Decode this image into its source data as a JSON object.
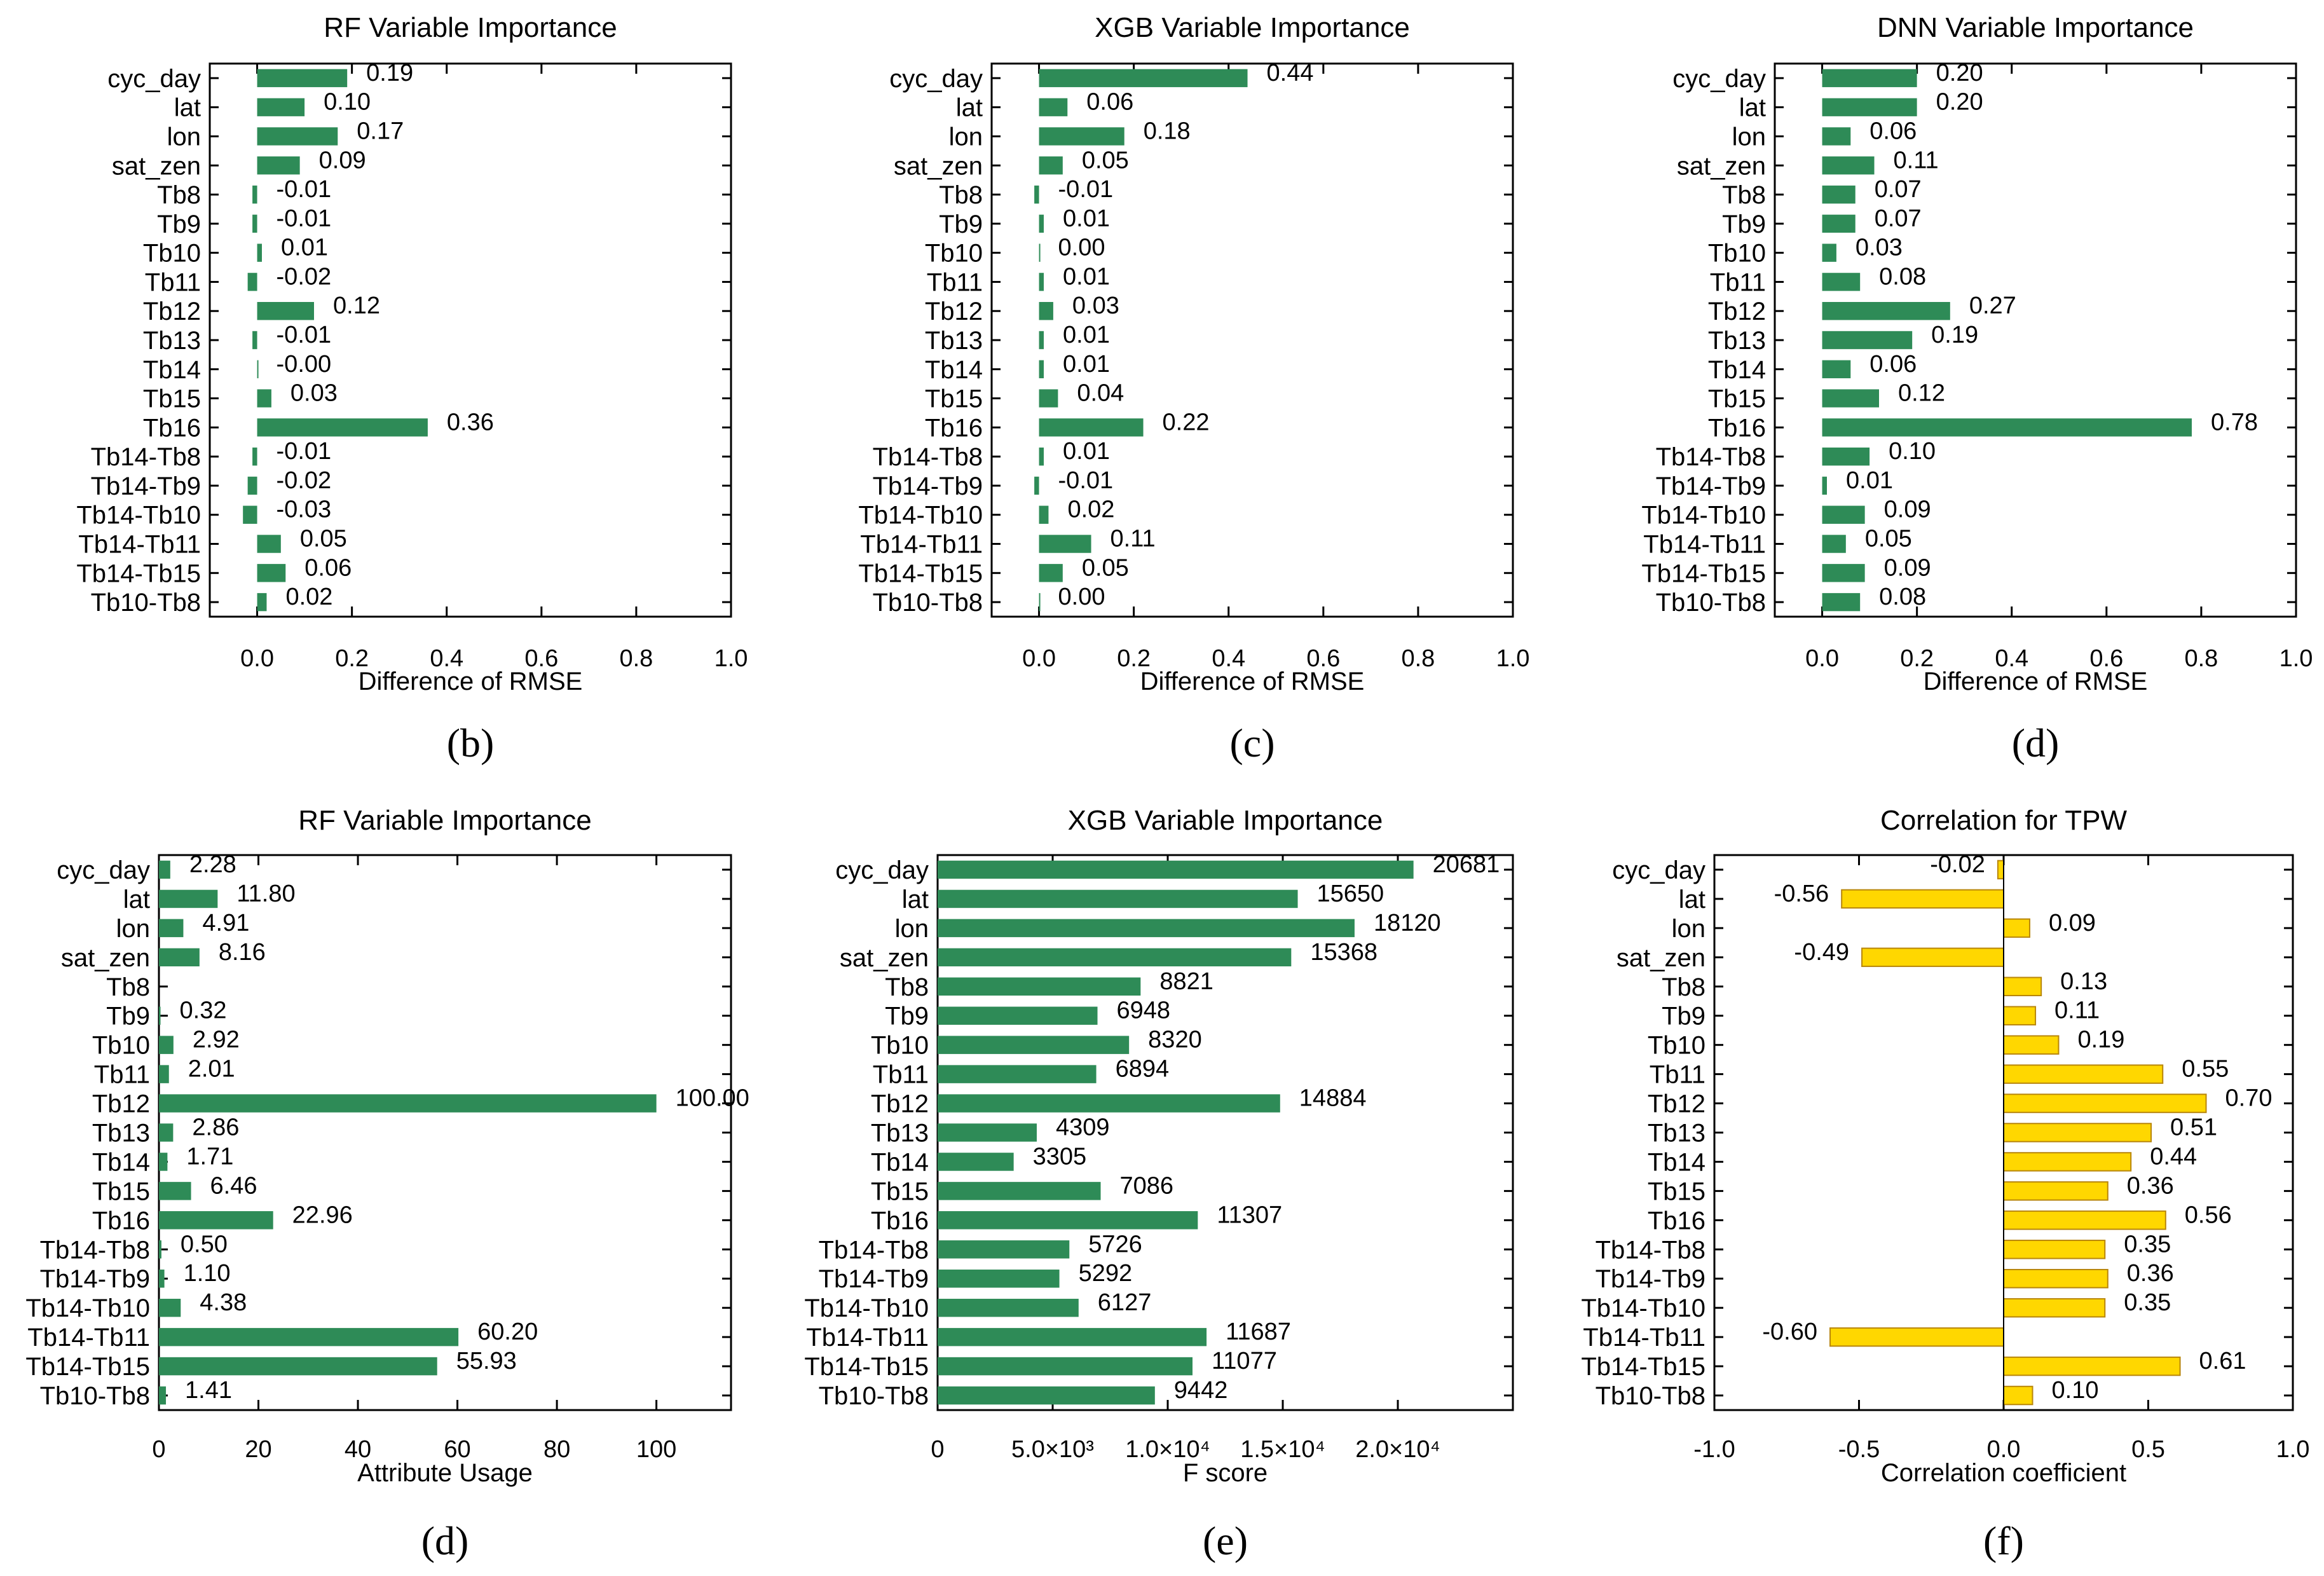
{
  "chart_data": [
    {
      "type": "bar",
      "orientation": "horizontal",
      "title": "RF Variable Importance",
      "xlabel": "Difference of RMSE",
      "panel_label": "(b)",
      "categories": [
        "cyc_day",
        "lat",
        "lon",
        "sat_zen",
        "Tb8",
        "Tb9",
        "Tb10",
        "Tb11",
        "Tb12",
        "Tb13",
        "Tb14",
        "Tb15",
        "Tb16",
        "Tb14-Tb8",
        "Tb14-Tb9",
        "Tb14-Tb10",
        "Tb14-Tb11",
        "Tb14-Tb15",
        "Tb10-Tb8"
      ],
      "values": [
        0.19,
        0.1,
        0.17,
        0.09,
        -0.01,
        -0.01,
        0.01,
        -0.02,
        0.12,
        -0.01,
        -0.0,
        0.03,
        0.36,
        -0.01,
        -0.02,
        -0.03,
        0.05,
        0.06,
        0.02
      ],
      "labels": [
        "0.19",
        "0.10",
        "0.17",
        "0.09",
        "-0.01",
        "-0.01",
        "0.01",
        "-0.02",
        "0.12",
        "-0.01",
        "-0.00",
        "0.03",
        "0.36",
        "-0.01",
        "-0.02",
        "-0.03",
        "0.05",
        "0.06",
        "0.02"
      ],
      "xlim": [
        -0.1,
        1.0
      ],
      "xticks": [
        0.0,
        0.2,
        0.4,
        0.6,
        0.8,
        1.0
      ],
      "xtick_labels": [
        "0.0",
        "0.2",
        "0.4",
        "0.6",
        "0.8",
        "1.0"
      ],
      "bar_color": "#2e8b57"
    },
    {
      "type": "bar",
      "orientation": "horizontal",
      "title": "XGB Variable Importance",
      "xlabel": "Difference of RMSE",
      "panel_label": "(c)",
      "categories": [
        "cyc_day",
        "lat",
        "lon",
        "sat_zen",
        "Tb8",
        "Tb9",
        "Tb10",
        "Tb11",
        "Tb12",
        "Tb13",
        "Tb14",
        "Tb15",
        "Tb16",
        "Tb14-Tb8",
        "Tb14-Tb9",
        "Tb14-Tb10",
        "Tb14-Tb11",
        "Tb14-Tb15",
        "Tb10-Tb8"
      ],
      "values": [
        0.44,
        0.06,
        0.18,
        0.05,
        -0.01,
        0.01,
        0.0,
        0.01,
        0.03,
        0.01,
        0.01,
        0.04,
        0.22,
        0.01,
        -0.01,
        0.02,
        0.11,
        0.05,
        0.0
      ],
      "labels": [
        "0.44",
        "0.06",
        "0.18",
        "0.05",
        "-0.01",
        "0.01",
        "0.00",
        "0.01",
        "0.03",
        "0.01",
        "0.01",
        "0.04",
        "0.22",
        "0.01",
        "-0.01",
        "0.02",
        "0.11",
        "0.05",
        "0.00"
      ],
      "xlim": [
        -0.1,
        1.0
      ],
      "xticks": [
        0.0,
        0.2,
        0.4,
        0.6,
        0.8,
        1.0
      ],
      "xtick_labels": [
        "0.0",
        "0.2",
        "0.4",
        "0.6",
        "0.8",
        "1.0"
      ],
      "bar_color": "#2e8b57"
    },
    {
      "type": "bar",
      "orientation": "horizontal",
      "title": "DNN Variable Importance",
      "xlabel": "Difference of RMSE",
      "panel_label": "(d)",
      "categories": [
        "cyc_day",
        "lat",
        "lon",
        "sat_zen",
        "Tb8",
        "Tb9",
        "Tb10",
        "Tb11",
        "Tb12",
        "Tb13",
        "Tb14",
        "Tb15",
        "Tb16",
        "Tb14-Tb8",
        "Tb14-Tb9",
        "Tb14-Tb10",
        "Tb14-Tb11",
        "Tb14-Tb15",
        "Tb10-Tb8"
      ],
      "values": [
        0.2,
        0.2,
        0.06,
        0.11,
        0.07,
        0.07,
        0.03,
        0.08,
        0.27,
        0.19,
        0.06,
        0.12,
        0.78,
        0.1,
        0.01,
        0.09,
        0.05,
        0.09,
        0.08
      ],
      "labels": [
        "0.20",
        "0.20",
        "0.06",
        "0.11",
        "0.07",
        "0.07",
        "0.03",
        "0.08",
        "0.27",
        "0.19",
        "0.06",
        "0.12",
        "0.78",
        "0.10",
        "0.01",
        "0.09",
        "0.05",
        "0.09",
        "0.08"
      ],
      "xlim": [
        -0.1,
        1.0
      ],
      "xticks": [
        0.0,
        0.2,
        0.4,
        0.6,
        0.8,
        1.0
      ],
      "xtick_labels": [
        "0.0",
        "0.2",
        "0.4",
        "0.6",
        "0.8",
        "1.0"
      ],
      "bar_color": "#2e8b57"
    },
    {
      "type": "bar",
      "orientation": "horizontal",
      "title": "RF Variable Importance",
      "xlabel": "Attribute Usage",
      "panel_label": "(d)",
      "categories": [
        "cyc_day",
        "lat",
        "lon",
        "sat_zen",
        "Tb8",
        "Tb9",
        "Tb10",
        "Tb11",
        "Tb12",
        "Tb13",
        "Tb14",
        "Tb15",
        "Tb16",
        "Tb14-Tb8",
        "Tb14-Tb9",
        "Tb14-Tb10",
        "Tb14-Tb11",
        "Tb14-Tb15",
        "Tb10-Tb8"
      ],
      "values": [
        2.28,
        11.8,
        4.91,
        8.16,
        0,
        0.32,
        2.92,
        2.01,
        100.0,
        2.86,
        1.71,
        6.46,
        22.96,
        0.5,
        1.1,
        4.38,
        60.2,
        55.93,
        1.41
      ],
      "labels": [
        "2.28",
        "11.80",
        "4.91",
        "8.16",
        "",
        "0.32",
        "2.92",
        "2.01",
        "100.00",
        "2.86",
        "1.71",
        "6.46",
        "22.96",
        "0.50",
        "1.10",
        "4.38",
        "60.20",
        "55.93",
        "1.41"
      ],
      "xlim": [
        0,
        115
      ],
      "xticks": [
        0,
        20,
        40,
        60,
        80,
        100
      ],
      "xtick_labels": [
        "0",
        "20",
        "40",
        "60",
        "80",
        "100"
      ],
      "bar_color": "#2e8b57"
    },
    {
      "type": "bar",
      "orientation": "horizontal",
      "title": "XGB Variable Importance",
      "xlabel": "F score",
      "panel_label": "(e)",
      "categories": [
        "cyc_day",
        "lat",
        "lon",
        "sat_zen",
        "Tb8",
        "Tb9",
        "Tb10",
        "Tb11",
        "Tb12",
        "Tb13",
        "Tb14",
        "Tb15",
        "Tb16",
        "Tb14-Tb8",
        "Tb14-Tb9",
        "Tb14-Tb10",
        "Tb14-Tb11",
        "Tb14-Tb15",
        "Tb10-Tb8"
      ],
      "values": [
        20681,
        15650,
        18120,
        15368,
        8821,
        6948,
        8320,
        6894,
        14884,
        4309,
        3305,
        7086,
        11307,
        5726,
        5292,
        6127,
        11687,
        11077,
        9442
      ],
      "labels": [
        "20681",
        "15650",
        "18120",
        "15368",
        "8821",
        "6948",
        "8320",
        "6894",
        "14884",
        "4309",
        "3305",
        "7086",
        "11307",
        "5726",
        "5292",
        "6127",
        "11687",
        "11077",
        "9442"
      ],
      "xlim": [
        0,
        25000
      ],
      "xticks": [
        0,
        5000,
        10000,
        15000,
        20000
      ],
      "xtick_labels": [
        "0",
        "5.0×10³",
        "1.0×10⁴",
        "1.5×10⁴",
        "2.0×10⁴"
      ],
      "bar_color": "#2e8b57"
    },
    {
      "type": "bar",
      "orientation": "horizontal",
      "title": "Correlation for TPW",
      "xlabel": "Correlation coefficient",
      "panel_label": "(f)",
      "categories": [
        "cyc_day",
        "lat",
        "lon",
        "sat_zen",
        "Tb8",
        "Tb9",
        "Tb10",
        "Tb11",
        "Tb12",
        "Tb13",
        "Tb14",
        "Tb15",
        "Tb16",
        "Tb14-Tb8",
        "Tb14-Tb9",
        "Tb14-Tb10",
        "Tb14-Tb11",
        "Tb14-Tb15",
        "Tb10-Tb8"
      ],
      "values": [
        -0.02,
        -0.56,
        0.09,
        -0.49,
        0.13,
        0.11,
        0.19,
        0.55,
        0.7,
        0.51,
        0.44,
        0.36,
        0.56,
        0.35,
        0.36,
        0.35,
        -0.6,
        0.61,
        0.1
      ],
      "labels": [
        "-0.02",
        "-0.56",
        "0.09",
        "-0.49",
        "0.13",
        "0.11",
        "0.19",
        "0.55",
        "0.70",
        "0.51",
        "0.44",
        "0.36",
        "0.56",
        "0.35",
        "0.36",
        "0.35",
        "-0.60",
        "0.61",
        "0.10"
      ],
      "xlim": [
        -1.0,
        1.0
      ],
      "xticks": [
        -1.0,
        -0.5,
        0.0,
        0.5,
        1.0
      ],
      "xtick_labels": [
        "-1.0",
        "-0.5",
        "0.0",
        "0.5",
        "1.0"
      ],
      "bar_color": "#ffd700"
    }
  ]
}
